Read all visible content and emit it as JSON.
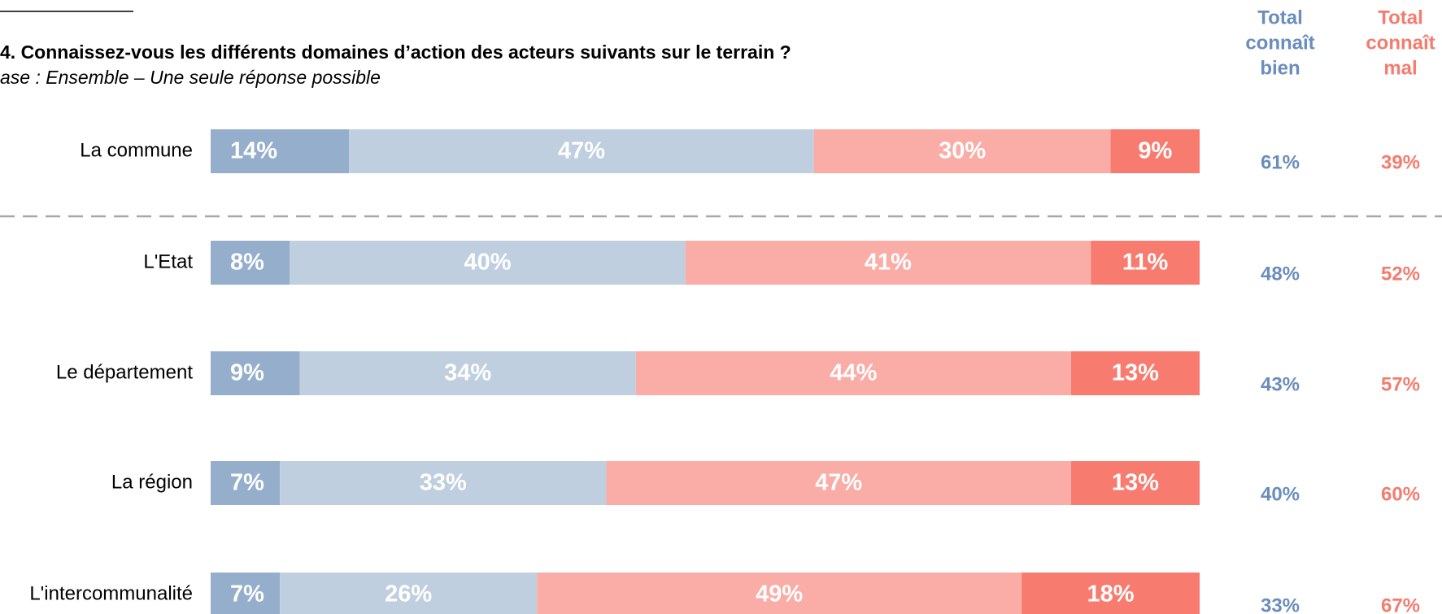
{
  "chart_data": {
    "type": "bar",
    "orientation": "horizontal",
    "stacked": true,
    "title": "4. Connaissez-vous les différents domaines d’action des acteurs suivants sur le terrain ?",
    "subtitle": "ase : Ensemble – Une seule réponse possible",
    "xlim": [
      0,
      100
    ],
    "categories": [
      "La commune",
      "L'Etat",
      "Le département",
      "La région",
      "L'intercommunalité"
    ],
    "series": [
      {
        "color": "#95aecb",
        "values": [
          14,
          8,
          9,
          7,
          7
        ],
        "value_labels": [
          "14%",
          "8%",
          "9%",
          "7%",
          "7%"
        ]
      },
      {
        "color": "#bfcfe0",
        "values": [
          47,
          40,
          34,
          33,
          26
        ],
        "value_labels": [
          "47%",
          "40%",
          "34%",
          "33%",
          "26%"
        ]
      },
      {
        "color": "#f9ada6",
        "values": [
          30,
          41,
          44,
          47,
          49
        ],
        "value_labels": [
          "30%",
          "41%",
          "44%",
          "47%",
          "49%"
        ]
      },
      {
        "color": "#f77c6f",
        "values": [
          9,
          11,
          13,
          13,
          18
        ],
        "value_labels": [
          "9%",
          "11%",
          "13%",
          "13%",
          "18%"
        ]
      }
    ],
    "columns": [
      {
        "title_lines": [
          "Total",
          "connaît",
          "bien"
        ],
        "color": "#6a8dbd",
        "values": [
          61,
          48,
          43,
          40,
          33
        ],
        "value_labels": [
          "61%",
          "48%",
          "43%",
          "40%",
          "33%"
        ]
      },
      {
        "title_lines": [
          "Total",
          "connaît",
          "mal"
        ],
        "color": "#f47c6e",
        "values": [
          39,
          52,
          57,
          60,
          67
        ],
        "value_labels": [
          "39%",
          "52%",
          "57%",
          "60%",
          "67%"
        ]
      }
    ]
  }
}
